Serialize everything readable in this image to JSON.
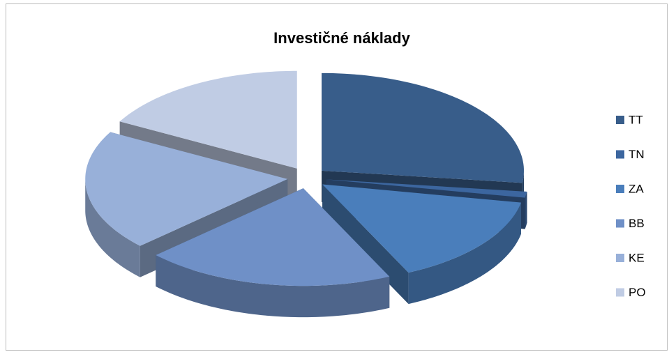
{
  "chart_data": {
    "type": "pie",
    "title": "Investičné náklady",
    "categories": [
      "TT",
      "TN",
      "ZA",
      "BB",
      "KE",
      "PO"
    ],
    "values": [
      27,
      1,
      15,
      20,
      20,
      17
    ],
    "colors": [
      "#385d8a",
      "#3c669f",
      "#4a7ebb",
      "#6f90c7",
      "#98b0d9",
      "#c0cce4"
    ],
    "legend": "right"
  }
}
